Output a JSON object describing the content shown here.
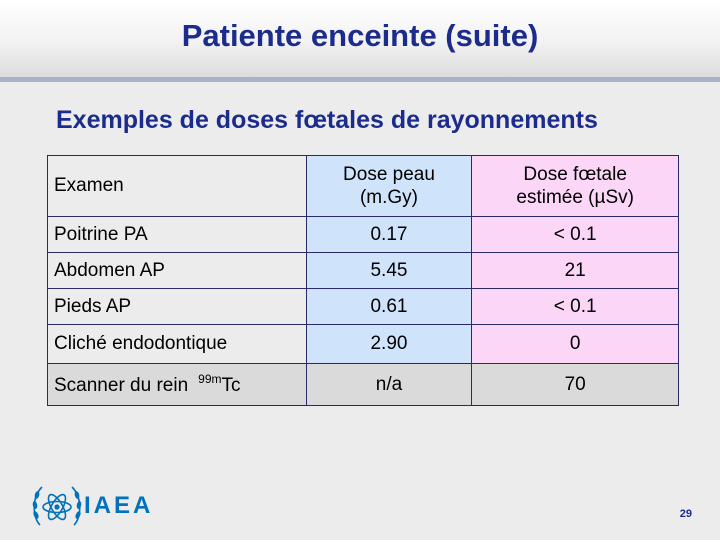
{
  "slide": {
    "title": "Patiente enceinte (suite)",
    "subtitle": "Exemples de doses fœtales de rayonnements",
    "page_number": "29"
  },
  "table": {
    "headers": [
      "Examen",
      "Dose peau (m.Gy)",
      "Dose fœtale estimée (µSv)"
    ],
    "header_lines": {
      "col2_line1": "Dose peau",
      "col2_line2": "(m.Gy)",
      "col3_line1": "Dose fœtale",
      "col3_line2": "estimée (µSv)"
    },
    "rows": [
      {
        "exam": "Poitrine PA",
        "skin_dose": "0.17",
        "fetal_dose": "< 0.1"
      },
      {
        "exam": "Abdomen AP",
        "skin_dose": "5.45",
        "fetal_dose": "21"
      },
      {
        "exam": "Pieds AP",
        "skin_dose": "0.61",
        "fetal_dose": "< 0.1"
      },
      {
        "exam": "Cliché endodontique",
        "skin_dose": "2.90",
        "fetal_dose": "0"
      },
      {
        "exam": "Scanner du rein",
        "isotope_mass": "99m",
        "isotope_symbol": "Tc",
        "skin_dose": "n/a",
        "fetal_dose": "70"
      }
    ]
  },
  "logo": {
    "text": "IAEA",
    "icon": "iaea-atom-laurel-icon"
  },
  "colors": {
    "title": "#1c2c8c",
    "skin_dose_column": "#cfe4fa",
    "fetal_dose_column": "#fbd6f7",
    "last_row": "#dadada",
    "logo": "#0072bc"
  }
}
